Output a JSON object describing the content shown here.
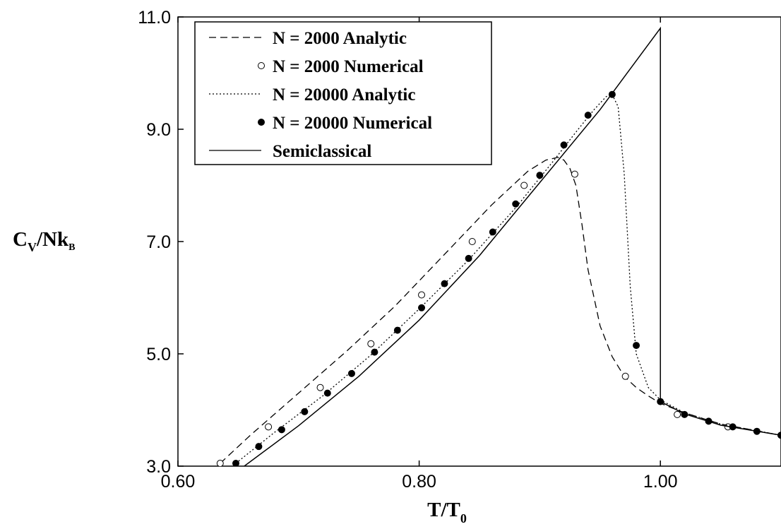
{
  "chart_data": {
    "type": "line",
    "xlabel": {
      "main": "T/T",
      "sub": "0"
    },
    "ylabel": {
      "main1": "C",
      "sub1": "V",
      "main2": "/Nk",
      "sub2": "B"
    },
    "xlim": [
      0.6,
      1.1
    ],
    "ylim": [
      3.0,
      11.0
    ],
    "x_ticks": [
      0.6,
      0.8,
      1.0
    ],
    "x_tick_labels": [
      "0.60",
      "0.80",
      "1.00"
    ],
    "y_ticks": [
      3,
      5,
      7,
      9,
      11
    ],
    "y_tick_labels": [
      "3.0",
      "5.0",
      "7.0",
      "9.0",
      "11.0"
    ],
    "grid": false,
    "legend_position": "top-left",
    "series": [
      {
        "name": "N = 2000 Analytic",
        "style": "dashed",
        "marker": "none",
        "x": [
          0.635,
          0.66,
          0.7,
          0.74,
          0.78,
          0.82,
          0.86,
          0.89,
          0.905,
          0.915,
          0.92,
          0.925,
          0.93,
          0.935,
          0.94,
          0.95,
          0.96,
          0.97,
          0.98,
          0.99,
          1.0,
          1.02,
          1.05,
          1.1
        ],
        "y": [
          3.05,
          3.55,
          4.3,
          5.05,
          5.85,
          6.75,
          7.65,
          8.25,
          8.45,
          8.5,
          8.45,
          8.3,
          8.0,
          7.3,
          6.5,
          5.5,
          4.95,
          4.6,
          4.4,
          4.25,
          4.12,
          3.95,
          3.75,
          3.55
        ]
      },
      {
        "name": "N = 2000 Numerical",
        "style": "none",
        "marker": "open-circle",
        "x": [
          0.635,
          0.675,
          0.718,
          0.76,
          0.802,
          0.844,
          0.887,
          0.929,
          0.971,
          1.014,
          1.056,
          1.1
        ],
        "y": [
          3.05,
          3.7,
          4.4,
          5.18,
          6.05,
          7.0,
          8.0,
          8.2,
          4.6,
          3.92,
          3.7,
          3.55
        ]
      },
      {
        "name": "N = 20000 Analytic",
        "style": "dotted",
        "marker": "none",
        "x": [
          0.648,
          0.68,
          0.72,
          0.76,
          0.8,
          0.84,
          0.88,
          0.91,
          0.93,
          0.945,
          0.955,
          0.96,
          0.965,
          0.97,
          0.975,
          0.98,
          0.99,
          1.0,
          1.02,
          1.05,
          1.1
        ],
        "y": [
          3.05,
          3.6,
          4.25,
          4.98,
          5.8,
          6.65,
          7.6,
          8.4,
          8.95,
          9.35,
          9.58,
          9.62,
          9.4,
          8.2,
          6.2,
          5.0,
          4.4,
          4.18,
          3.95,
          3.75,
          3.55
        ]
      },
      {
        "name": "N = 20000 Numerical",
        "style": "none",
        "marker": "filled-circle",
        "x": [
          0.648,
          0.667,
          0.686,
          0.705,
          0.724,
          0.744,
          0.763,
          0.782,
          0.802,
          0.821,
          0.841,
          0.861,
          0.88,
          0.9,
          0.92,
          0.94,
          0.96,
          0.98,
          1.0,
          1.02,
          1.04,
          1.06,
          1.08,
          1.1
        ],
        "y": [
          3.05,
          3.35,
          3.65,
          3.97,
          4.3,
          4.65,
          5.03,
          5.42,
          5.82,
          6.25,
          6.7,
          7.17,
          7.67,
          8.18,
          8.72,
          9.25,
          9.62,
          5.15,
          4.15,
          3.92,
          3.8,
          3.7,
          3.62,
          3.55
        ]
      },
      {
        "name": "Semiclassical",
        "style": "solid",
        "marker": "none",
        "x": [
          0.655,
          0.7,
          0.75,
          0.8,
          0.85,
          0.9,
          0.95,
          1.0,
          1.0,
          1.0,
          1.02,
          1.05,
          1.1
        ],
        "y": [
          3.0,
          3.72,
          4.6,
          5.6,
          6.75,
          8.05,
          9.35,
          10.8,
          4.2,
          4.15,
          3.93,
          3.73,
          3.55
        ]
      }
    ]
  }
}
